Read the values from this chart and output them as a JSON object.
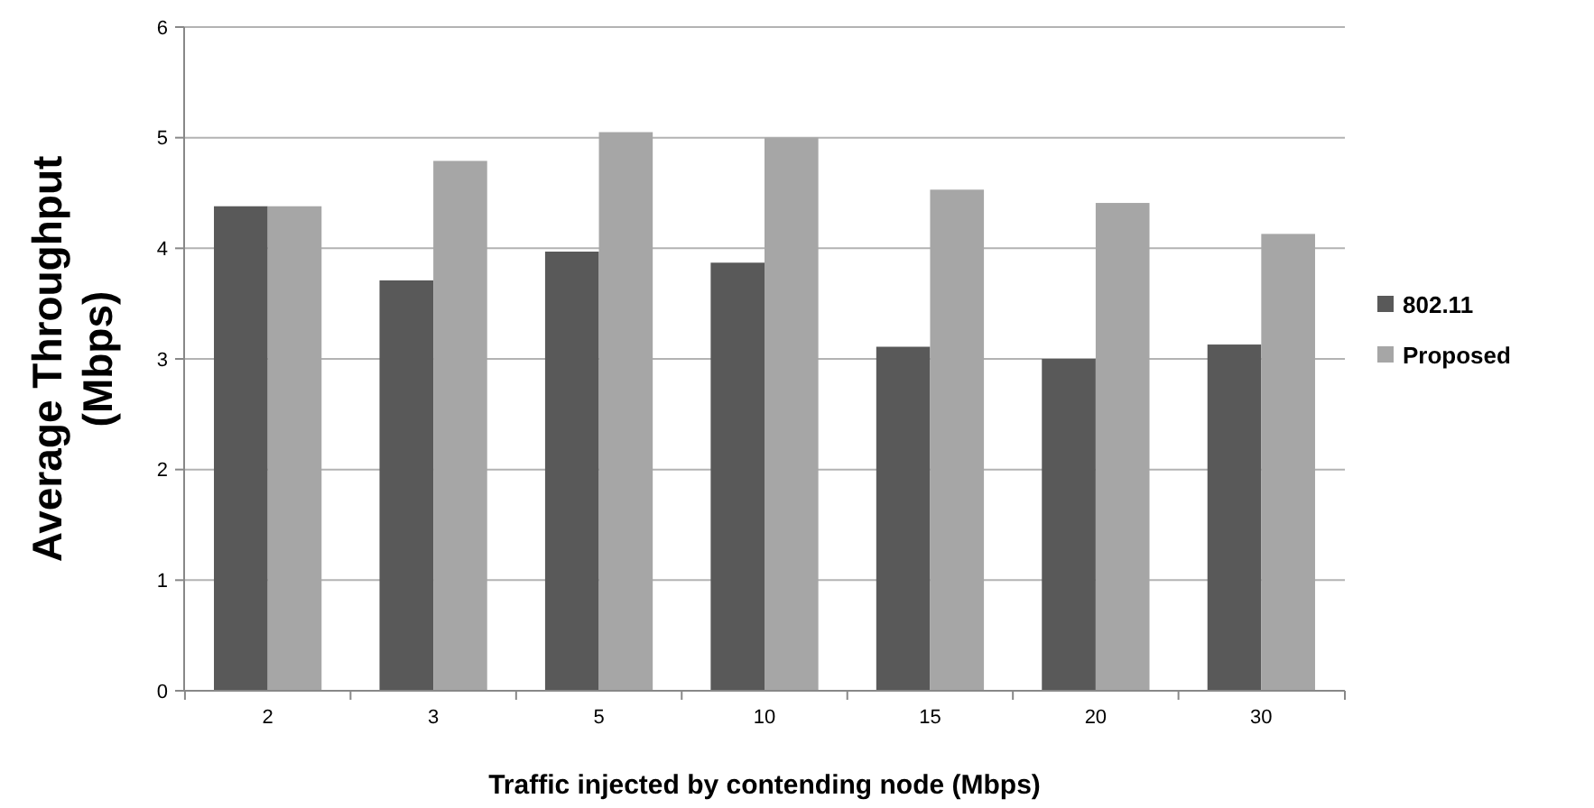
{
  "chart_data": {
    "type": "bar",
    "xlabel": "Traffic injected by contending node (Mbps)",
    "ylabel": "Average Throughput (Mbps)",
    "categories": [
      "2",
      "3",
      "5",
      "10",
      "15",
      "20",
      "30"
    ],
    "series": [
      {
        "name": "802.11",
        "color": "#595959",
        "values": [
          4.38,
          3.71,
          3.97,
          3.87,
          3.11,
          3.0,
          3.13
        ]
      },
      {
        "name": "Proposed",
        "color": "#a6a6a6",
        "values": [
          4.38,
          4.79,
          5.05,
          5.0,
          4.53,
          4.41,
          4.13
        ]
      }
    ],
    "ylim": [
      0,
      6
    ],
    "yticks": [
      0,
      1,
      2,
      3,
      4,
      5,
      6
    ],
    "grid": "y",
    "legend": "right"
  }
}
